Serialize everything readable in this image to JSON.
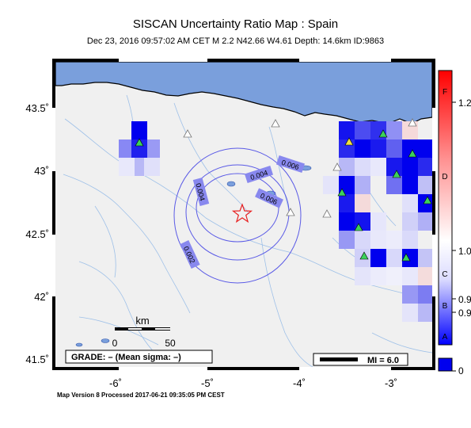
{
  "header": {
    "title": "SISCAN Uncertainty Ratio Map : Spain",
    "subtitle": "Dec 23, 2016 09:57:02 AM CET   M 2.2   N42.66 W4.61   Depth: 14.6km   ID:9863"
  },
  "map": {
    "lat_range": [
      41.45,
      43.9
    ],
    "lon_range": [
      -6.65,
      -2.35
    ],
    "lat_ticks": [
      "43.5˚",
      "43˚",
      "42.5˚",
      "42˚",
      "41.5˚"
    ],
    "lon_ticks": [
      "-6˚",
      "-5˚",
      "-4˚",
      "-3˚"
    ],
    "epicenter": {
      "lat": 42.66,
      "lon": -4.61
    },
    "contours": [
      {
        "label": "0.004"
      },
      {
        "label": "0.004"
      },
      {
        "label": "0.006"
      },
      {
        "label": "0.006"
      },
      {
        "label": "0.002"
      }
    ],
    "scale_bar": {
      "unit": "km",
      "ticks": [
        "0",
        "50"
      ]
    },
    "grade_label": "GRADE: – (Mean sigma: –)",
    "mi_legend": "MI = 6.0",
    "colors": {
      "sea": "#7a9fdc",
      "land": "#f0f0f0",
      "contour": "#5a5ae6",
      "epicenter": "#e82020",
      "station": "#3cd25a"
    }
  },
  "colorbar": {
    "letters": [
      "F",
      "D",
      "C",
      "B",
      "A"
    ],
    "values": [
      "1.2",
      "1.0",
      "0.9",
      "0.9",
      "0"
    ],
    "top_color": "#ff1a1a",
    "bottom_color": "#0000ee"
  },
  "footer": {
    "text": "Map Version 8 Processed 2017-06-21 09:35:05 PM CEST"
  }
}
